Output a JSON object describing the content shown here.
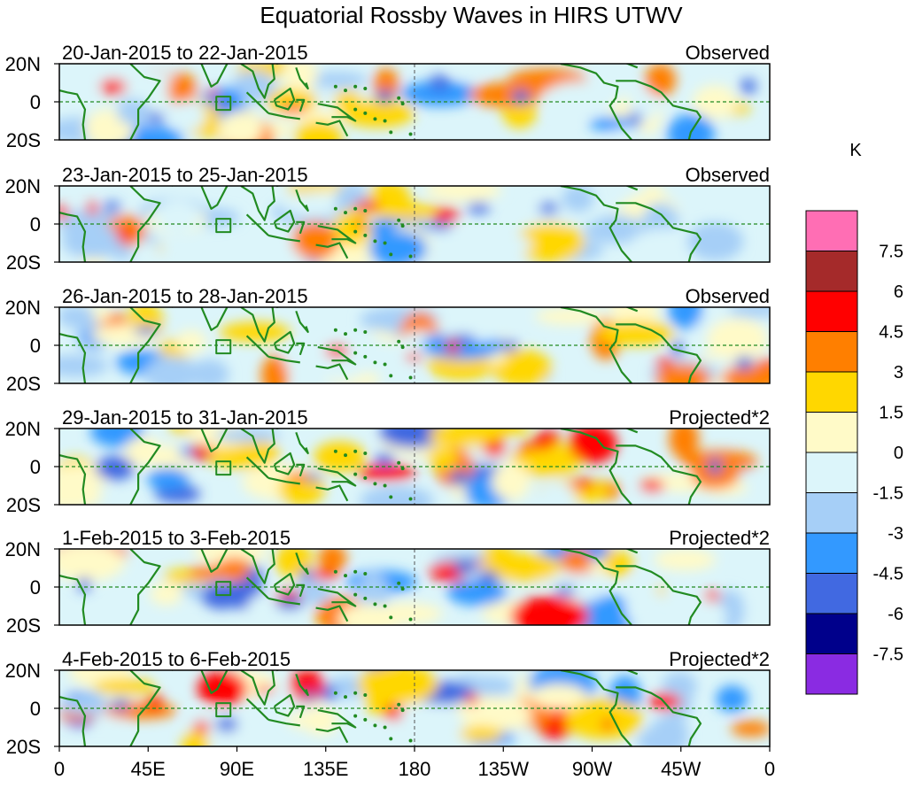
{
  "title": "Equatorial Rossby Waves in HIRS UTWV",
  "panels": [
    {
      "date_range": "20-Jan-2015 to 22-Jan-2015",
      "status": "Observed"
    },
    {
      "date_range": "23-Jan-2015 to 25-Jan-2015",
      "status": "Observed"
    },
    {
      "date_range": "26-Jan-2015 to 28-Jan-2015",
      "status": "Observed"
    },
    {
      "date_range": "29-Jan-2015 to 31-Jan-2015",
      "status": "Projected*2"
    },
    {
      "date_range": "1-Feb-2015 to 3-Feb-2015",
      "status": "Projected*2"
    },
    {
      "date_range": "4-Feb-2015 to 6-Feb-2015",
      "status": "Projected*2"
    }
  ],
  "lat_labels": [
    "20N",
    "0",
    "20S"
  ],
  "lon_labels": [
    "0",
    "45E",
    "90E",
    "135E",
    "180",
    "135W",
    "90W",
    "45W",
    "0"
  ],
  "colorbar": {
    "unit": "K",
    "tick_labels": [
      "7.5",
      "6",
      "4.5",
      "3",
      "1.5",
      "0",
      "-1.5",
      "-3",
      "-4.5",
      "-6",
      "-7.5"
    ],
    "colors_top_to_bottom": [
      "#ff6eb4",
      "#a52a2a",
      "#ff0000",
      "#ff7f00",
      "#ffd700",
      "#fffac8",
      "#dcf5fa",
      "#a6cff7",
      "#3399ff",
      "#4169e1",
      "#00008b",
      "#8a2be2"
    ]
  },
  "style": {
    "coast_color": "#228b22",
    "equator_color": "#228b22",
    "frame_color": "#000000"
  }
}
